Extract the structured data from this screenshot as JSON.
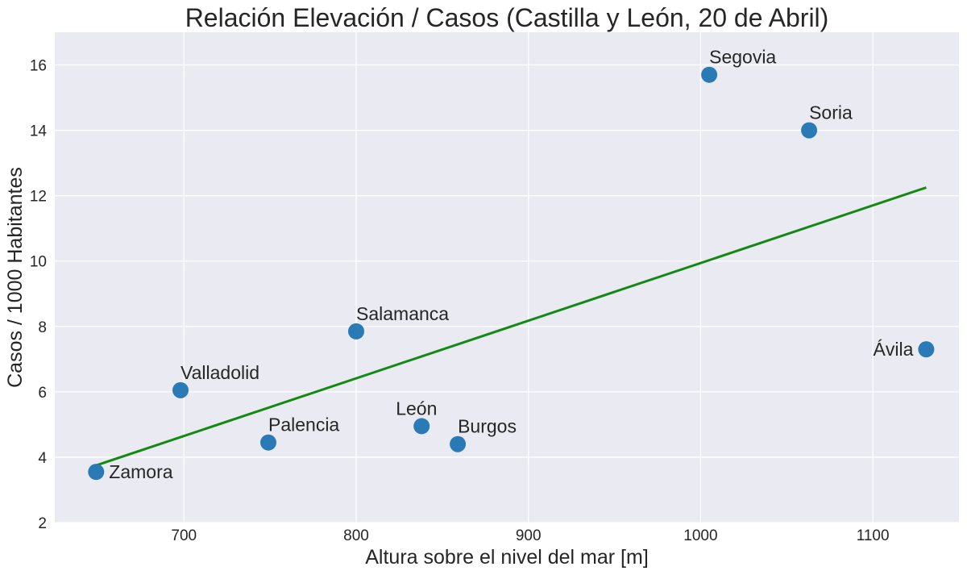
{
  "chart_data": {
    "type": "scatter",
    "title": "Relación Elevación / Casos (Castilla y León, 20 de Abril)",
    "xlabel": "Altura sobre el nivel del mar [m]",
    "ylabel": "Casos / 1000 Habitantes",
    "xlim": [
      625,
      1150
    ],
    "ylim": [
      2,
      17
    ],
    "xticks": [
      700,
      800,
      900,
      1000,
      1100
    ],
    "yticks": [
      2,
      4,
      6,
      8,
      10,
      12,
      14,
      16
    ],
    "grid": true,
    "points": [
      {
        "label": "Zamora",
        "x": 649,
        "y": 3.55,
        "label_side": "right"
      },
      {
        "label": "Valladolid",
        "x": 698,
        "y": 6.05,
        "label_side": "above"
      },
      {
        "label": "Palencia",
        "x": 749,
        "y": 4.45,
        "label_side": "above"
      },
      {
        "label": "Salamanca",
        "x": 800,
        "y": 7.85,
        "label_side": "above"
      },
      {
        "label": "León",
        "x": 838,
        "y": 4.95,
        "label_side": "above-left"
      },
      {
        "label": "Burgos",
        "x": 859,
        "y": 4.4,
        "label_side": "above"
      },
      {
        "label": "Segovia",
        "x": 1005,
        "y": 15.7,
        "label_side": "above"
      },
      {
        "label": "Soria",
        "x": 1063,
        "y": 14.0,
        "label_side": "above"
      },
      {
        "label": "Ávila",
        "x": 1131,
        "y": 7.3,
        "label_side": "left"
      }
    ],
    "trendline": {
      "x": [
        649,
        1131
      ],
      "y": [
        3.75,
        12.25
      ],
      "color": "#138a13"
    },
    "point_color": "#2a7ab5",
    "plot_background": "#eaeaf2"
  }
}
